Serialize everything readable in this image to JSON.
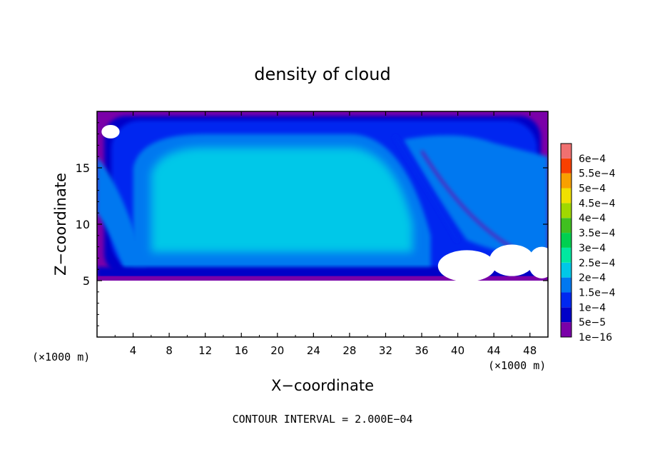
{
  "chart_data": {
    "type": "heatmap",
    "title": "density of cloud",
    "xlabel": "X−coordinate",
    "ylabel": "Z−coordinate",
    "x_unit_label": "(×1000 m)",
    "y_unit_label": "(×1000 m)",
    "xlim": [
      0,
      50
    ],
    "ylim": [
      0,
      20
    ],
    "x_ticks": [
      4,
      8,
      12,
      16,
      20,
      24,
      28,
      32,
      36,
      40,
      44,
      48
    ],
    "x_tick_labels": [
      "4",
      "8",
      "12",
      "16",
      "20",
      "24",
      "28",
      "32",
      "36",
      "40",
      "44",
      "48"
    ],
    "y_ticks": [
      5,
      10,
      15
    ],
    "y_tick_labels": [
      "5",
      "10",
      "15"
    ],
    "colorbar": {
      "labels": [
        "1e−16",
        "5e−5",
        "1e−4",
        "1.5e−4",
        "2e−4",
        "2.5e−4",
        "3e−4",
        "3.5e−4",
        "4e−4",
        "4.5e−4",
        "5e−4",
        "5.5e−4",
        "6e−4"
      ],
      "values": [
        1e-16,
        5e-05,
        0.0001,
        0.00015,
        0.0002,
        0.00025,
        0.0003,
        0.00035,
        0.0004,
        0.00045,
        0.0005,
        0.00055,
        0.0006
      ],
      "colors": [
        "#7a00a8",
        "#0000c8",
        "#0028f0",
        "#0078f0",
        "#00c8e8",
        "#00e8a0",
        "#00d050",
        "#40c020",
        "#a0d800",
        "#f0e000",
        "#f8a000",
        "#f84000",
        "#f07070"
      ]
    },
    "footer": "CONTOUR INTERVAL = 2.000E−04",
    "regions": {
      "cloud_base_z": 5,
      "cloud_top_z": 20,
      "core": {
        "x": [
          4,
          36
        ],
        "z": [
          6,
          18
        ],
        "density": 0.0002
      },
      "anvil_right": {
        "x": [
          36,
          50
        ],
        "z": [
          6,
          19
        ],
        "density": 0.00015
      },
      "left_branch": {
        "x": [
          0,
          6
        ],
        "z": [
          5,
          16
        ],
        "density": 0.00015
      },
      "outer_shell_density": 5e-05,
      "edge_density": 1e-16
    }
  }
}
